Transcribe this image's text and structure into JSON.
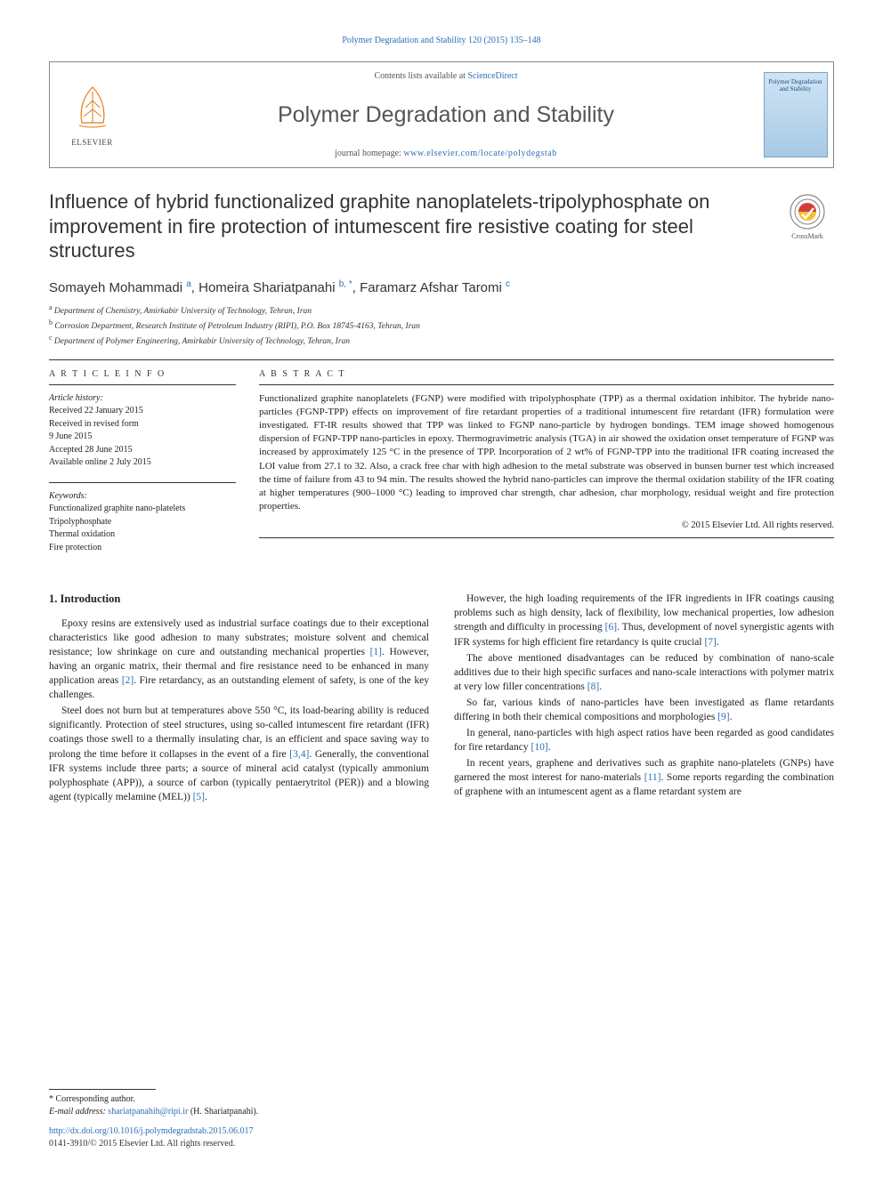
{
  "journal_ref": "Polymer Degradation and Stability 120 (2015) 135–148",
  "header": {
    "publisher": "ELSEVIER",
    "contents_prefix": "Contents lists available at ",
    "contents_link": "ScienceDirect",
    "journal_title": "Polymer Degradation and Stability",
    "homepage_prefix": "journal homepage: ",
    "homepage_url": "www.elsevier.com/locate/polydegstab",
    "cover_title": "Polymer Degradation and Stability"
  },
  "crossmark_label": "CrossMark",
  "article_title": "Influence of hybrid functionalized graphite nanoplatelets-tripolyphosphate on improvement in fire protection of intumescent fire resistive coating for steel structures",
  "authors_html": "Somayeh Mohammadi <sup>a</sup>, Homeira Shariatpanahi <sup>b, *</sup>, Faramarz Afshar Taromi <sup>c</sup>",
  "affiliations": {
    "a": "Department of Chemistry, Amirkabir University of Technology, Tehran, Iran",
    "b": "Corrosion Department, Research Institute of Petroleum Industry (RIPI), P.O. Box 18745-4163, Tehran, Iran",
    "c": "Department of Polymer Engineering, Amirkabir University of Technology, Tehran, Iran"
  },
  "info": {
    "head": "A R T I C L E   I N F O",
    "history_label": "Article history:",
    "history": [
      "Received 22 January 2015",
      "Received in revised form",
      "9 June 2015",
      "Accepted 28 June 2015",
      "Available online 2 July 2015"
    ],
    "keywords_label": "Keywords:",
    "keywords": [
      "Functionalized graphite nano-platelets",
      "Tripolyphosphate",
      "Thermal oxidation",
      "Fire protection"
    ]
  },
  "abstract": {
    "head": "A B S T R A C T",
    "text": "Functionalized graphite nanoplatelets (FGNP) were modified with tripolyphosphate (TPP) as a thermal oxidation inhibitor. The hybride nano-particles (FGNP-TPP) effects on improvement of fire retardant properties of a traditional intumescent fire retardant (IFR) formulation were investigated. FT-IR results showed that TPP was linked to FGNP nano-particle by hydrogen bondings. TEM image showed homogenous dispersion of FGNP-TPP nano-particles in epoxy. Thermogravimetric analysis (TGA) in air showed the oxidation onset temperature of FGNP was increased by approximately 125 °C in the presence of TPP. Incorporation of 2 wt% of FGNP-TPP into the traditional IFR coating increased the LOI value from 27.1 to 32. Also, a crack free char with high adhesion to the metal substrate was observed in bunsen burner test which increased the time of failure from 43 to 94 min. The results showed the hybrid nano-particles can improve the thermal oxidation stability of the IFR coating at higher temperatures (900–1000 °C) leading to improved char strength, char adhesion, char morphology, residual weight and fire protection properties.",
    "copyright": "© 2015 Elsevier Ltd. All rights reserved."
  },
  "body": {
    "section_heading": "1.  Introduction",
    "p1": "Epoxy resins are extensively used as industrial surface coatings due to their exceptional characteristics like good adhesion to many substrates; moisture solvent and chemical resistance; low shrinkage on cure and outstanding mechanical properties [1]. However, having an organic matrix, their thermal and fire resistance need to be enhanced in many application areas [2]. Fire retardancy, as an outstanding element of safety, is one of the key challenges.",
    "p2": "Steel does not burn but at temperatures above 550 °C, its load-bearing ability is reduced significantly. Protection of steel structures, using so-called intumescent fire retardant (IFR) coatings those swell to a thermally insulating char, is an efficient and space saving way to prolong the time before it collapses in the event of a fire [3,4]. Generally, the conventional IFR systems include three parts; a source of mineral acid catalyst (typically ammonium polyphosphate (APP)), a source of carbon (typically pentaerytritol (PER)) and a blowing agent (typically melamine (MEL)) [5].",
    "p3": "However, the high loading requirements of the IFR ingredients in IFR coatings causing problems such as high density, lack of flexibility, low mechanical properties, low adhesion strength and difficulty in processing [6]. Thus, development of novel synergistic agents with IFR systems for high efficient fire retardancy is quite crucial [7].",
    "p4": "The above mentioned disadvantages can be reduced by combination of nano-scale additives due to their high specific surfaces and nano-scale interactions with polymer matrix at very low filler concentrations [8].",
    "p5": "So far, various kinds of nano-particles have been investigated as flame retardants differing in both their chemical compositions and morphologies [9].",
    "p6": "In general, nano-particles with high aspect ratios have been regarded as good candidates for fire retardancy [10].",
    "p7": "In recent years, graphene and derivatives such as graphite nano-platelets (GNPs) have garnered the most interest for nano-materials [11]. Some reports regarding the combination of graphene with an intumescent agent as a flame retardant system are"
  },
  "footer": {
    "corresponding": "* Corresponding author.",
    "email_label": "E-mail address:",
    "email": "shariatpanahih@ripi.ir",
    "email_name": "(H. Shariatpanahi).",
    "doi": "http://dx.doi.org/10.1016/j.polymdegradstab.2015.06.017",
    "issn": "0141-3910/© 2015 Elsevier Ltd. All rights reserved."
  },
  "colors": {
    "link": "#2a6fb5",
    "text": "#222",
    "rule": "#333"
  }
}
